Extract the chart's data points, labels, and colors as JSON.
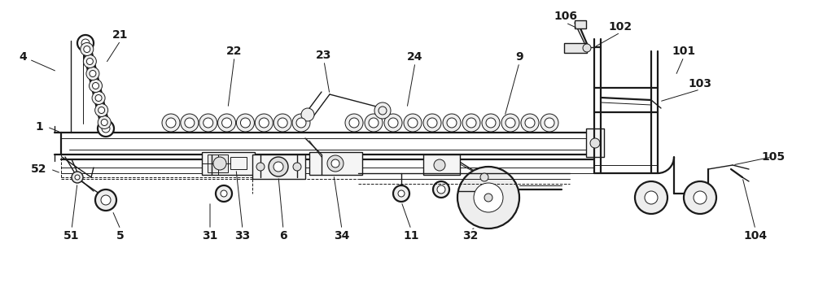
{
  "background_color": "#ffffff",
  "line_color": "#1a1a1a",
  "label_color": "#000000",
  "fig_width": 10.0,
  "fig_height": 3.48,
  "dpi": 100
}
